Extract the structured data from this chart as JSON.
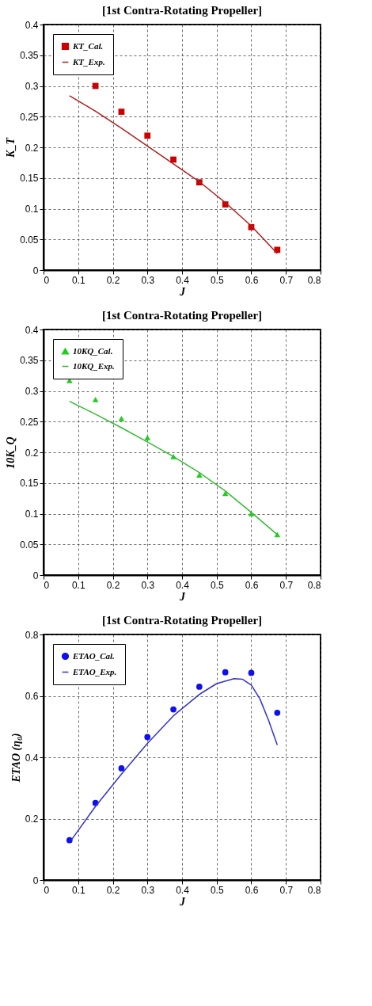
{
  "chart_data": [
    {
      "type": "line",
      "title": "[1st Contra-Rotating Propeller]",
      "xlabel": "J",
      "ylabel": "K_T",
      "xlim": [
        0,
        0.8
      ],
      "xticks": [
        0,
        0.1,
        0.2,
        0.3,
        0.4,
        0.5,
        0.6,
        0.7,
        0.8
      ],
      "ylim": [
        0,
        0.4
      ],
      "yticks": [
        0,
        0.05,
        0.1,
        0.15,
        0.2,
        0.25,
        0.3,
        0.35,
        0.4
      ],
      "grid": true,
      "legend": "top left",
      "series": [
        {
          "name": "KT_Cal.",
          "color": "#cc0000",
          "type": "scatter",
          "marker": "square",
          "x": [
            0.15,
            0.225,
            0.3,
            0.375,
            0.45,
            0.525,
            0.6,
            0.675
          ],
          "values": [
            0.3,
            0.258,
            0.219,
            0.18,
            0.143,
            0.107,
            0.07,
            0.033
          ]
        },
        {
          "name": "KT_Exp.",
          "color": "#b01c1c",
          "type": "line",
          "marker": "none",
          "x": [
            0.075,
            0.15,
            0.225,
            0.3,
            0.375,
            0.45,
            0.525,
            0.6,
            0.675
          ],
          "values": [
            0.284,
            0.259,
            0.231,
            0.202,
            0.173,
            0.144,
            0.11,
            0.072,
            0.027
          ]
        }
      ]
    },
    {
      "type": "line",
      "title": "[1st Contra-Rotating Propeller]",
      "xlabel": "J",
      "ylabel": "10K_Q",
      "xlim": [
        0,
        0.8
      ],
      "xticks": [
        0,
        0.1,
        0.2,
        0.3,
        0.4,
        0.5,
        0.6,
        0.7,
        0.8
      ],
      "ylim": [
        0,
        0.4
      ],
      "yticks": [
        0,
        0.05,
        0.1,
        0.15,
        0.2,
        0.25,
        0.3,
        0.35,
        0.4
      ],
      "grid": true,
      "legend": "top left",
      "series": [
        {
          "name": "10KQ_Cal.",
          "color": "#22cc22",
          "type": "scatter",
          "marker": "triangle",
          "x": [
            0.075,
            0.15,
            0.225,
            0.3,
            0.375,
            0.45,
            0.525,
            0.6,
            0.675
          ],
          "values": [
            0.317,
            0.286,
            0.255,
            0.224,
            0.193,
            0.163,
            0.133,
            0.1,
            0.066
          ]
        },
        {
          "name": "10KQ_Exp.",
          "color": "#33bb33",
          "type": "line",
          "marker": "none",
          "x": [
            0.075,
            0.15,
            0.225,
            0.3,
            0.375,
            0.45,
            0.525,
            0.6,
            0.675
          ],
          "values": [
            0.283,
            0.262,
            0.24,
            0.217,
            0.193,
            0.167,
            0.137,
            0.102,
            0.066
          ]
        }
      ]
    },
    {
      "type": "line",
      "title": "[1st Contra-Rotating Propeller]",
      "xlabel": "J",
      "ylabel": "ETAO (η₀)",
      "xlim": [
        0,
        0.8
      ],
      "xticks": [
        0,
        0.1,
        0.2,
        0.3,
        0.4,
        0.5,
        0.6,
        0.7,
        0.8
      ],
      "ylim": [
        0,
        0.8
      ],
      "yticks": [
        0,
        0.2,
        0.4,
        0.6,
        0.8
      ],
      "grid": true,
      "legend": "top left",
      "series": [
        {
          "name": "ETAO_Cal.",
          "color": "#1010ee",
          "type": "scatter",
          "marker": "circle",
          "x": [
            0.075,
            0.15,
            0.225,
            0.3,
            0.375,
            0.45,
            0.525,
            0.6,
            0.675
          ],
          "values": [
            0.13,
            0.251,
            0.364,
            0.466,
            0.556,
            0.63,
            0.677,
            0.675,
            0.545
          ]
        },
        {
          "name": "ETAO_Exp.",
          "color": "#3333cc",
          "type": "line",
          "marker": "none",
          "x": [
            0.08,
            0.15,
            0.225,
            0.3,
            0.375,
            0.45,
            0.5,
            0.55,
            0.575,
            0.6,
            0.625,
            0.65,
            0.675
          ],
          "values": [
            0.13,
            0.24,
            0.345,
            0.445,
            0.535,
            0.605,
            0.64,
            0.656,
            0.654,
            0.635,
            0.59,
            0.52,
            0.44
          ]
        }
      ]
    }
  ]
}
